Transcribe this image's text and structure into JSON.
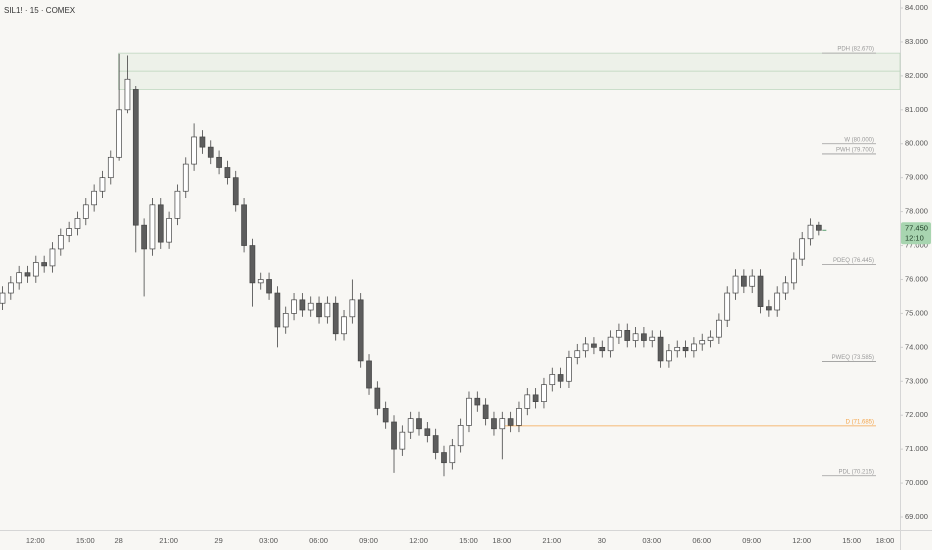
{
  "chart_data": {
    "type": "candlestick",
    "title": "SIL1! · 15 · COMEX",
    "categories": [
      null,
      null,
      null,
      null,
      "12:00",
      null,
      null,
      null,
      null,
      null,
      "15:00",
      null,
      null,
      null,
      "28",
      null,
      null,
      null,
      null,
      null,
      "21:00",
      null,
      null,
      null,
      null,
      null,
      "29",
      null,
      null,
      null,
      null,
      null,
      "03:00",
      null,
      null,
      null,
      null,
      null,
      "06:00",
      null,
      null,
      null,
      null,
      null,
      "09:00",
      null,
      null,
      null,
      null,
      null,
      "12:00",
      null,
      null,
      null,
      null,
      null,
      "15:00",
      null,
      null,
      null,
      "18:00",
      null,
      null,
      null,
      null,
      null,
      "21:00",
      null,
      null,
      null,
      null,
      null,
      "30",
      null,
      null,
      null,
      null,
      null,
      "03:00",
      null,
      null,
      null,
      null,
      null,
      "06:00",
      null,
      null,
      null,
      null,
      null,
      "09:00",
      null,
      null,
      null,
      null,
      null,
      "12:00",
      null,
      null,
      null,
      null,
      null,
      "15:00",
      null,
      null,
      null,
      "18:00"
    ],
    "open": [
      75.3,
      75.6,
      75.9,
      76.2,
      76.1,
      76.5,
      76.4,
      76.9,
      77.3,
      77.5,
      77.8,
      78.2,
      78.6,
      79.0,
      79.6,
      81.0,
      81.6,
      77.6,
      76.9,
      78.2,
      77.1,
      77.8,
      78.6,
      79.4,
      80.2,
      79.9,
      79.6,
      79.3,
      79.0,
      78.2,
      77.0,
      75.9,
      76.0,
      75.6,
      74.6,
      75.0,
      75.4,
      75.1,
      75.3,
      74.9,
      75.3,
      74.4,
      74.9,
      75.4,
      73.6,
      72.8,
      72.2,
      71.8,
      71.0,
      71.5,
      71.9,
      71.6,
      71.4,
      70.9,
      70.6,
      71.1,
      71.7,
      72.5,
      72.3,
      71.9,
      71.6,
      71.9,
      71.7,
      72.2,
      72.6,
      72.4,
      72.9,
      73.2,
      73.0,
      73.7,
      73.9,
      74.1,
      74.0,
      73.9,
      74.3,
      74.5,
      74.2,
      74.4,
      74.2,
      74.3,
      73.6,
      73.9,
      74.0,
      73.9,
      74.1,
      74.2,
      74.3,
      74.8,
      75.6,
      76.1,
      75.8,
      76.1,
      75.2,
      75.1,
      75.6,
      75.9,
      76.6,
      77.2,
      77.6,
      null,
      null,
      null,
      null,
      null,
      null,
      null,
      null
    ],
    "high": [
      75.8,
      76.1,
      76.4,
      76.4,
      76.7,
      76.7,
      77.1,
      77.5,
      77.7,
      78.0,
      78.4,
      78.8,
      79.2,
      79.8,
      82.65,
      82.6,
      81.7,
      77.8,
      78.4,
      78.4,
      78.0,
      78.8,
      79.6,
      80.6,
      80.4,
      80.1,
      79.8,
      79.5,
      79.2,
      78.4,
      77.2,
      76.2,
      76.2,
      75.8,
      75.2,
      75.6,
      75.6,
      75.5,
      75.5,
      75.5,
      75.5,
      75.1,
      76.0,
      75.6,
      73.8,
      73.0,
      72.4,
      72.0,
      71.7,
      72.1,
      72.1,
      71.8,
      71.6,
      71.1,
      71.3,
      71.9,
      72.7,
      72.7,
      72.5,
      72.1,
      72.1,
      72.1,
      72.4,
      72.8,
      72.8,
      73.1,
      73.4,
      73.4,
      73.9,
      74.1,
      74.3,
      74.3,
      74.2,
      74.5,
      74.7,
      74.7,
      74.6,
      74.6,
      74.5,
      74.5,
      74.1,
      74.2,
      74.2,
      74.3,
      74.4,
      74.5,
      75.0,
      75.8,
      76.3,
      76.3,
      76.3,
      76.3,
      75.4,
      75.8,
      76.1,
      76.8,
      77.4,
      77.8,
      77.7,
      null,
      null,
      null,
      null,
      null,
      null,
      null,
      null
    ],
    "low": [
      75.1,
      75.4,
      75.7,
      75.9,
      75.9,
      76.2,
      76.2,
      76.7,
      77.1,
      77.3,
      77.6,
      78.0,
      78.4,
      78.8,
      79.5,
      80.9,
      76.8,
      75.5,
      76.7,
      76.9,
      76.9,
      77.6,
      78.4,
      79.2,
      79.7,
      79.4,
      79.1,
      78.8,
      78.0,
      76.8,
      75.2,
      75.7,
      75.4,
      74.0,
      74.4,
      74.8,
      74.9,
      74.9,
      74.7,
      74.7,
      74.2,
      74.2,
      74.7,
      73.4,
      72.6,
      72.0,
      71.6,
      70.3,
      70.8,
      71.3,
      71.4,
      71.2,
      70.7,
      70.2,
      70.4,
      70.9,
      71.5,
      72.1,
      71.7,
      71.4,
      70.7,
      71.5,
      71.5,
      72.0,
      72.2,
      72.2,
      72.7,
      72.8,
      72.8,
      73.5,
      73.7,
      73.8,
      73.7,
      73.7,
      74.1,
      74.0,
      74.0,
      74.0,
      74.0,
      73.4,
      73.4,
      73.7,
      73.7,
      73.7,
      73.9,
      74.0,
      74.1,
      74.6,
      75.4,
      75.6,
      75.6,
      75.0,
      74.9,
      74.9,
      75.4,
      75.7,
      76.4,
      77.0,
      77.3,
      null,
      null,
      null,
      null,
      null,
      null,
      null,
      null
    ],
    "close": [
      75.6,
      75.9,
      76.2,
      76.1,
      76.5,
      76.4,
      76.9,
      77.3,
      77.5,
      77.8,
      78.2,
      78.6,
      79.0,
      79.6,
      81.0,
      81.9,
      77.6,
      76.9,
      78.2,
      77.1,
      77.8,
      78.6,
      79.4,
      80.2,
      79.9,
      79.6,
      79.3,
      79.0,
      78.2,
      77.0,
      75.9,
      76.0,
      75.6,
      74.6,
      75.0,
      75.4,
      75.1,
      75.3,
      74.9,
      75.3,
      74.4,
      74.9,
      75.4,
      73.6,
      72.8,
      72.2,
      71.8,
      71.0,
      71.5,
      71.9,
      71.6,
      71.4,
      70.9,
      70.6,
      71.1,
      71.7,
      72.5,
      72.3,
      71.9,
      71.6,
      71.9,
      71.7,
      72.2,
      72.6,
      72.4,
      72.9,
      73.2,
      73.0,
      73.7,
      73.9,
      74.1,
      74.0,
      73.9,
      74.3,
      74.5,
      74.2,
      74.4,
      74.2,
      74.3,
      73.6,
      73.9,
      74.0,
      73.9,
      74.1,
      74.2,
      74.3,
      74.8,
      75.6,
      76.1,
      75.8,
      76.1,
      75.2,
      75.1,
      75.6,
      75.9,
      76.6,
      77.2,
      77.6,
      77.45,
      null,
      null,
      null,
      null,
      null,
      null,
      null,
      null
    ],
    "up_color": "#ffffff",
    "down_color": "#5d5d5d",
    "ylim": [
      68.617,
      84.236
    ],
    "yticks": [
      {
        "value": 69,
        "label": "69.000"
      },
      {
        "value": 70,
        "label": "70.000"
      },
      {
        "value": 71,
        "label": "71.000"
      },
      {
        "value": 72,
        "label": "72.000"
      },
      {
        "value": 73,
        "label": "73.000"
      },
      {
        "value": 74,
        "label": "74.000"
      },
      {
        "value": 75,
        "label": "75.000"
      },
      {
        "value": 76,
        "label": "76.000"
      },
      {
        "value": 77,
        "label": "77.000"
      },
      {
        "value": 78,
        "label": "78.000"
      },
      {
        "value": 79,
        "label": "79.000"
      },
      {
        "value": 80,
        "label": "80.000"
      },
      {
        "value": 81,
        "label": "81.000"
      },
      {
        "value": 82,
        "label": "82.000"
      },
      {
        "value": 83,
        "label": "83.000"
      },
      {
        "value": 84,
        "label": "84.000"
      }
    ],
    "zone": {
      "top": 82.67,
      "mid": 82.14,
      "bottom": 81.6
    },
    "levels": [
      {
        "label": "PDH (82.670)",
        "value": 82.67,
        "color": "#9a9a9a"
      },
      {
        "label": "W (80.000)",
        "value": 80.0,
        "color": "#9a9a9a"
      },
      {
        "label": "PWH (79.700)",
        "value": 79.7,
        "color": "#9a9a9a"
      },
      {
        "label": "PDEQ (76.445)",
        "value": 76.445,
        "color": "#9a9a9a"
      },
      {
        "label": "PWEQ (73.585)",
        "value": 73.585,
        "color": "#9a9a9a"
      },
      {
        "label": "D (71.685)",
        "value": 71.685,
        "color": "#f5a54a"
      },
      {
        "label": "PDL (70.215)",
        "value": 70.215,
        "color": "#9a9a9a"
      }
    ],
    "last_price": {
      "value": 77.45,
      "label": "77.450"
    },
    "countdown": "12:10"
  }
}
